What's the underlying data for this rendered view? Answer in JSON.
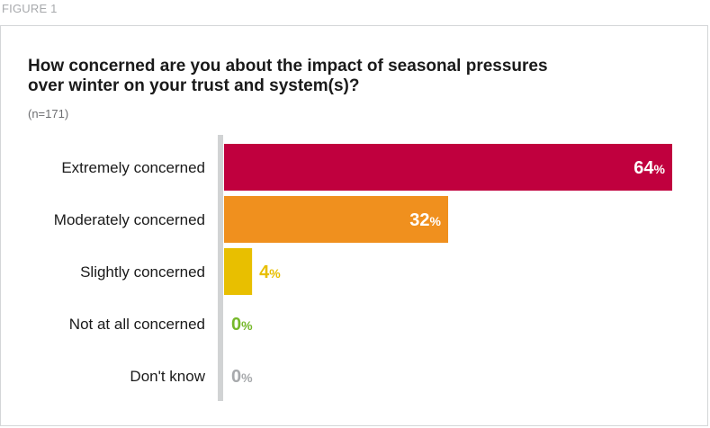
{
  "figure_label": "FIGURE 1",
  "chart_data": {
    "type": "bar",
    "orientation": "horizontal",
    "title": "How concerned are you about the impact of seasonal pressures over winter on your trust and system(s)?",
    "subtitle": "(n=171)",
    "categories": [
      "Extremely concerned",
      "Moderately concerned",
      "Slightly concerned",
      "Not at all concerned",
      "Don't know"
    ],
    "values": [
      64,
      32,
      4,
      0,
      0
    ],
    "value_suffix": "%",
    "colors": [
      "#c0003e",
      "#f0901e",
      "#e8bf00",
      "#76b82a",
      "#a7a9ac"
    ],
    "axis_color": "#d1d3d4",
    "xlim": [
      0,
      64
    ],
    "grid": false,
    "legend": "none"
  }
}
